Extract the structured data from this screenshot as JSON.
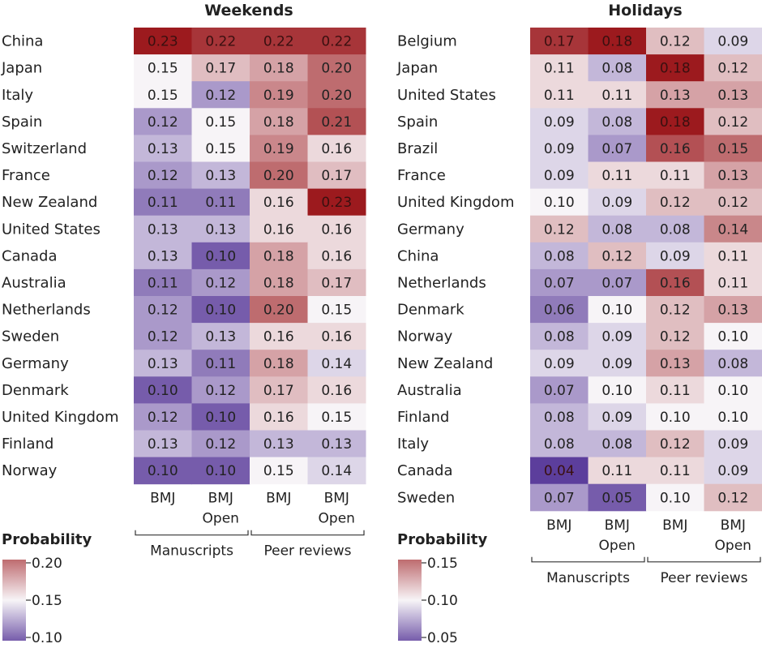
{
  "chart_data": [
    {
      "type": "heatmap",
      "title": "Weekends",
      "columns": [
        "BMJ",
        "BMJ Open",
        "BMJ",
        "BMJ Open"
      ],
      "column_groups": [
        {
          "label": "Manuscripts",
          "span": [
            0,
            1
          ]
        },
        {
          "label": "Peer reviews",
          "span": [
            2,
            3
          ]
        }
      ],
      "rows": [
        "China",
        "Japan",
        "Italy",
        "Spain",
        "Switzerland",
        "France",
        "New Zealand",
        "United States",
        "Canada",
        "Australia",
        "Netherlands",
        "Sweden",
        "Germany",
        "Denmark",
        "United Kingdom",
        "Finland",
        "Norway"
      ],
      "values": [
        [
          0.23,
          0.22,
          0.22,
          0.22
        ],
        [
          0.15,
          0.17,
          0.18,
          0.2
        ],
        [
          0.15,
          0.12,
          0.19,
          0.2
        ],
        [
          0.12,
          0.15,
          0.18,
          0.21
        ],
        [
          0.13,
          0.15,
          0.19,
          0.16
        ],
        [
          0.12,
          0.13,
          0.2,
          0.17
        ],
        [
          0.11,
          0.11,
          0.16,
          0.23
        ],
        [
          0.13,
          0.13,
          0.16,
          0.16
        ],
        [
          0.13,
          0.1,
          0.18,
          0.16
        ],
        [
          0.11,
          0.12,
          0.18,
          0.17
        ],
        [
          0.12,
          0.1,
          0.2,
          0.15
        ],
        [
          0.12,
          0.13,
          0.16,
          0.16
        ],
        [
          0.13,
          0.11,
          0.18,
          0.14
        ],
        [
          0.1,
          0.12,
          0.17,
          0.16
        ],
        [
          0.12,
          0.1,
          0.16,
          0.15
        ],
        [
          0.13,
          0.12,
          0.13,
          0.13
        ],
        [
          0.1,
          0.1,
          0.15,
          0.14
        ]
      ],
      "value_labels": [
        [
          "0.23",
          "0.22",
          "0.22",
          "0.22"
        ],
        [
          "0.15",
          "0.17",
          "0.18",
          "0.20"
        ],
        [
          "0.15",
          "0.12",
          "0.19",
          "0.20"
        ],
        [
          "0.12",
          "0.15",
          "0.18",
          "0.21"
        ],
        [
          "0.13",
          "0.15",
          "0.19",
          "0.16"
        ],
        [
          "0.12",
          "0.13",
          "0.20",
          "0.17"
        ],
        [
          "0.11",
          "0.11",
          "0.16",
          "0.23"
        ],
        [
          "0.13",
          "0.13",
          "0.16",
          "0.16"
        ],
        [
          "0.13",
          "0.10",
          "0.18",
          "0.16"
        ],
        [
          "0.11",
          "0.12",
          "0.18",
          "0.17"
        ],
        [
          "0.12",
          "0.10",
          "0.20",
          "0.15"
        ],
        [
          "0.12",
          "0.13",
          "0.16",
          "0.16"
        ],
        [
          "0.13",
          "0.11",
          "0.18",
          "0.14"
        ],
        [
          "0.10",
          "0.12",
          "0.17",
          "0.16"
        ],
        [
          "0.12",
          "0.10",
          "0.16",
          "0.15"
        ],
        [
          "0.13",
          "0.12",
          "0.13",
          "0.13"
        ],
        [
          "0.10",
          "0.10",
          "0.15",
          "0.14"
        ]
      ],
      "color_scale": {
        "min": 0.09,
        "mid": 0.15,
        "max": 0.23,
        "low_color": "#5c3e9c",
        "mid_color": "#f7f4f7",
        "high_color": "#9c1a1e"
      },
      "legend": {
        "title": "Probability",
        "ticks": [
          0.2,
          0.15,
          0.1
        ],
        "tick_labels": [
          "0.20",
          "0.15",
          "0.10"
        ],
        "range": [
          0.1,
          0.2
        ]
      }
    },
    {
      "type": "heatmap",
      "title": "Holidays",
      "columns": [
        "BMJ",
        "BMJ Open",
        "BMJ",
        "BMJ Open"
      ],
      "column_groups": [
        {
          "label": "Manuscripts",
          "span": [
            0,
            1
          ]
        },
        {
          "label": "Peer reviews",
          "span": [
            2,
            3
          ]
        }
      ],
      "rows": [
        "Belgium",
        "Japan",
        "United States",
        "Spain",
        "Brazil",
        "France",
        "United Kingdom",
        "Germany",
        "China",
        "Netherlands",
        "Denmark",
        "Norway",
        "New Zealand",
        "Australia",
        "Finland",
        "Italy",
        "Canada",
        "Sweden"
      ],
      "values": [
        [
          0.17,
          0.18,
          0.12,
          0.09
        ],
        [
          0.11,
          0.08,
          0.18,
          0.12
        ],
        [
          0.11,
          0.11,
          0.13,
          0.13
        ],
        [
          0.09,
          0.08,
          0.18,
          0.12
        ],
        [
          0.09,
          0.07,
          0.16,
          0.15
        ],
        [
          0.09,
          0.11,
          0.11,
          0.13
        ],
        [
          0.1,
          0.09,
          0.12,
          0.12
        ],
        [
          0.12,
          0.08,
          0.08,
          0.14
        ],
        [
          0.08,
          0.12,
          0.09,
          0.11
        ],
        [
          0.07,
          0.07,
          0.16,
          0.11
        ],
        [
          0.06,
          0.1,
          0.12,
          0.13
        ],
        [
          0.08,
          0.09,
          0.12,
          0.1
        ],
        [
          0.09,
          0.09,
          0.13,
          0.08
        ],
        [
          0.07,
          0.1,
          0.11,
          0.1
        ],
        [
          0.08,
          0.09,
          0.1,
          0.1
        ],
        [
          0.08,
          0.08,
          0.12,
          0.09
        ],
        [
          0.04,
          0.11,
          0.11,
          0.09
        ],
        [
          0.07,
          0.05,
          0.1,
          0.12
        ]
      ],
      "value_labels": [
        [
          "0.17",
          "0.18",
          "0.12",
          "0.09"
        ],
        [
          "0.11",
          "0.08",
          "0.18",
          "0.12"
        ],
        [
          "0.11",
          "0.11",
          "0.13",
          "0.13"
        ],
        [
          "0.09",
          "0.08",
          "0.18",
          "0.12"
        ],
        [
          "0.09",
          "0.07",
          "0.16",
          "0.15"
        ],
        [
          "0.09",
          "0.11",
          "0.11",
          "0.13"
        ],
        [
          "0.10",
          "0.09",
          "0.12",
          "0.12"
        ],
        [
          "0.12",
          "0.08",
          "0.08",
          "0.14"
        ],
        [
          "0.08",
          "0.12",
          "0.09",
          "0.11"
        ],
        [
          "0.07",
          "0.07",
          "0.16",
          "0.11"
        ],
        [
          "0.06",
          "0.10",
          "0.12",
          "0.13"
        ],
        [
          "0.08",
          "0.09",
          "0.12",
          "0.10"
        ],
        [
          "0.09",
          "0.09",
          "0.13",
          "0.08"
        ],
        [
          "0.07",
          "0.10",
          "0.11",
          "0.10"
        ],
        [
          "0.08",
          "0.09",
          "0.10",
          "0.10"
        ],
        [
          "0.08",
          "0.08",
          "0.12",
          "0.09"
        ],
        [
          "0.04",
          "0.11",
          "0.11",
          "0.09"
        ],
        [
          "0.07",
          "0.05",
          "0.10",
          "0.12"
        ]
      ],
      "color_scale": {
        "min": 0.04,
        "mid": 0.1,
        "max": 0.18,
        "low_color": "#5c3e9c",
        "mid_color": "#f7f4f7",
        "high_color": "#9c1a1e"
      },
      "legend": {
        "title": "Probability",
        "ticks": [
          0.15,
          0.1,
          0.05
        ],
        "tick_labels": [
          "0.15",
          "0.10",
          "0.05"
        ],
        "range": [
          0.05,
          0.15
        ]
      }
    }
  ]
}
